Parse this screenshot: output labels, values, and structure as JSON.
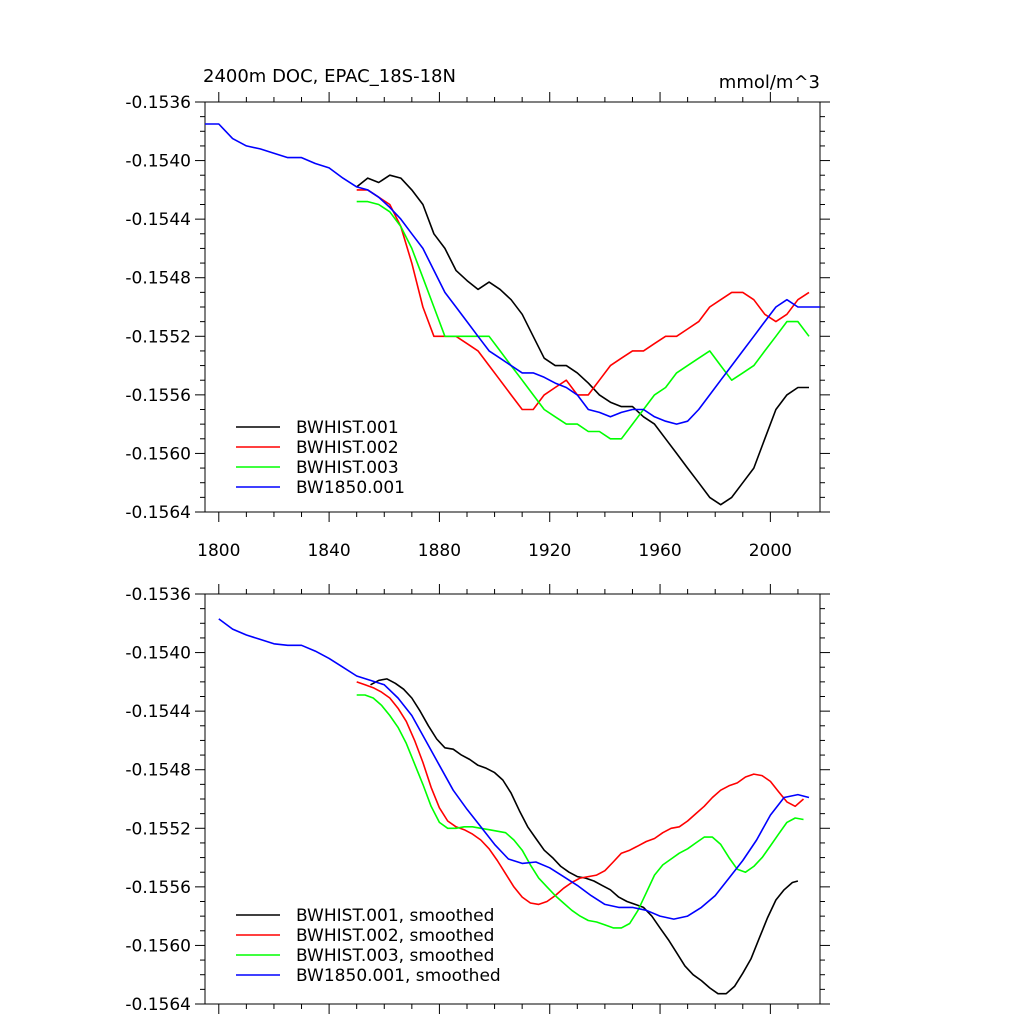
{
  "figure": {
    "title_left": "2400m DOC, EPAC_18S-18N",
    "title_right": "mmol/m^3"
  },
  "chart_data": [
    {
      "type": "line",
      "panel": "raw",
      "title": "2400m DOC, EPAC_18S-18N",
      "units": "mmol/m^3",
      "xlim": [
        1795,
        2018
      ],
      "ylim": [
        -0.1564,
        -0.1536
      ],
      "x_ticks": [
        1800,
        1840,
        1880,
        1920,
        1960,
        2000
      ],
      "x_tick_labels": [
        "1800",
        "1840",
        "1880",
        "1920",
        "1960",
        "2000"
      ],
      "y_ticks": [
        -0.1536,
        -0.154,
        -0.1544,
        -0.1548,
        -0.1552,
        -0.1556,
        -0.156,
        -0.1564
      ],
      "y_tick_labels": [
        "-0.1536",
        "-0.1540",
        "-0.1544",
        "-0.1548",
        "-0.1552",
        "-0.1556",
        "-0.1560",
        "-0.1564"
      ],
      "legend_position": "bottom-left",
      "series": [
        {
          "name": "BWHIST.001",
          "color": "#000000",
          "x": [
            1850,
            1854,
            1858,
            1862,
            1866,
            1870,
            1874,
            1878,
            1882,
            1886,
            1890,
            1894,
            1898,
            1902,
            1906,
            1910,
            1914,
            1918,
            1922,
            1926,
            1930,
            1934,
            1938,
            1942,
            1946,
            1950,
            1954,
            1958,
            1962,
            1966,
            1970,
            1974,
            1978,
            1982,
            1986,
            1990,
            1994,
            1998,
            2002,
            2006,
            2010,
            2014
          ],
          "y": [
            -0.15418,
            -0.15412,
            -0.15415,
            -0.1541,
            -0.15412,
            -0.1542,
            -0.1543,
            -0.1545,
            -0.1546,
            -0.15475,
            -0.15482,
            -0.15488,
            -0.15483,
            -0.15488,
            -0.15495,
            -0.15505,
            -0.1552,
            -0.15535,
            -0.1554,
            -0.1554,
            -0.15545,
            -0.15552,
            -0.1556,
            -0.15565,
            -0.15568,
            -0.15568,
            -0.15575,
            -0.1558,
            -0.1559,
            -0.156,
            -0.1561,
            -0.1562,
            -0.1563,
            -0.15635,
            -0.1563,
            -0.1562,
            -0.1561,
            -0.1559,
            -0.1557,
            -0.1556,
            -0.15555,
            -0.15555
          ]
        },
        {
          "name": "BWHIST.002",
          "color": "#ff0000",
          "x": [
            1850,
            1854,
            1858,
            1862,
            1866,
            1870,
            1874,
            1878,
            1882,
            1886,
            1890,
            1894,
            1898,
            1902,
            1906,
            1910,
            1914,
            1918,
            1922,
            1926,
            1930,
            1934,
            1938,
            1942,
            1946,
            1950,
            1954,
            1958,
            1962,
            1966,
            1970,
            1974,
            1978,
            1982,
            1986,
            1990,
            1994,
            1998,
            2002,
            2006,
            2010,
            2014
          ],
          "y": [
            -0.1542,
            -0.1542,
            -0.15425,
            -0.1543,
            -0.15445,
            -0.1547,
            -0.155,
            -0.1552,
            -0.1552,
            -0.1552,
            -0.15525,
            -0.1553,
            -0.1554,
            -0.1555,
            -0.1556,
            -0.1557,
            -0.1557,
            -0.1556,
            -0.15555,
            -0.1555,
            -0.1556,
            -0.1556,
            -0.1555,
            -0.1554,
            -0.15535,
            -0.1553,
            -0.1553,
            -0.15525,
            -0.1552,
            -0.1552,
            -0.15515,
            -0.1551,
            -0.155,
            -0.15495,
            -0.1549,
            -0.1549,
            -0.15495,
            -0.15505,
            -0.1551,
            -0.15505,
            -0.15495,
            -0.1549
          ]
        },
        {
          "name": "BWHIST.003",
          "color": "#00ff00",
          "x": [
            1850,
            1854,
            1858,
            1862,
            1866,
            1870,
            1874,
            1878,
            1882,
            1886,
            1890,
            1894,
            1898,
            1902,
            1906,
            1910,
            1914,
            1918,
            1922,
            1926,
            1930,
            1934,
            1938,
            1942,
            1946,
            1950,
            1954,
            1958,
            1962,
            1966,
            1970,
            1974,
            1978,
            1982,
            1986,
            1990,
            1994,
            1998,
            2002,
            2006,
            2010,
            2014
          ],
          "y": [
            -0.15428,
            -0.15428,
            -0.1543,
            -0.15435,
            -0.15445,
            -0.1546,
            -0.1548,
            -0.155,
            -0.1552,
            -0.1552,
            -0.1552,
            -0.1552,
            -0.1552,
            -0.1553,
            -0.1554,
            -0.1555,
            -0.1556,
            -0.1557,
            -0.15575,
            -0.1558,
            -0.1558,
            -0.15585,
            -0.15585,
            -0.1559,
            -0.1559,
            -0.1558,
            -0.1557,
            -0.1556,
            -0.15555,
            -0.15545,
            -0.1554,
            -0.15535,
            -0.1553,
            -0.1554,
            -0.1555,
            -0.15545,
            -0.1554,
            -0.1553,
            -0.1552,
            -0.1551,
            -0.1551,
            -0.1552
          ]
        },
        {
          "name": "BW1850.001",
          "color": "#0000ff",
          "x": [
            1795,
            1800,
            1805,
            1810,
            1815,
            1820,
            1825,
            1830,
            1835,
            1840,
            1845,
            1850,
            1854,
            1858,
            1862,
            1866,
            1870,
            1874,
            1878,
            1882,
            1886,
            1890,
            1894,
            1898,
            1902,
            1906,
            1910,
            1914,
            1918,
            1922,
            1926,
            1930,
            1934,
            1938,
            1942,
            1946,
            1950,
            1954,
            1958,
            1962,
            1966,
            1970,
            1974,
            1978,
            1982,
            1986,
            1990,
            1994,
            1998,
            2002,
            2006,
            2010,
            2014,
            2018
          ],
          "y": [
            -0.15375,
            -0.15375,
            -0.15385,
            -0.1539,
            -0.15392,
            -0.15395,
            -0.15398,
            -0.15398,
            -0.15402,
            -0.15405,
            -0.15412,
            -0.15418,
            -0.1542,
            -0.15425,
            -0.15432,
            -0.1544,
            -0.1545,
            -0.1546,
            -0.15475,
            -0.1549,
            -0.155,
            -0.1551,
            -0.1552,
            -0.1553,
            -0.15535,
            -0.1554,
            -0.15545,
            -0.15545,
            -0.15548,
            -0.15552,
            -0.15555,
            -0.1556,
            -0.1557,
            -0.15572,
            -0.15575,
            -0.15572,
            -0.1557,
            -0.1557,
            -0.15575,
            -0.15578,
            -0.1558,
            -0.15578,
            -0.1557,
            -0.1556,
            -0.1555,
            -0.1554,
            -0.1553,
            -0.1552,
            -0.1551,
            -0.155,
            -0.15495,
            -0.155,
            -0.155,
            -0.155
          ]
        }
      ]
    },
    {
      "type": "line",
      "panel": "smoothed",
      "xlim": [
        1795,
        2018
      ],
      "ylim": [
        -0.1564,
        -0.1536
      ],
      "x_ticks": [
        1800,
        1840,
        1880,
        1920,
        1960,
        2000
      ],
      "y_ticks": [
        -0.1536,
        -0.154,
        -0.1544,
        -0.1548,
        -0.1552,
        -0.1556,
        -0.156,
        -0.1564
      ],
      "y_tick_labels": [
        "-0.1536",
        "-0.1540",
        "-0.1544",
        "-0.1548",
        "-0.1552",
        "-0.1556",
        "-0.1560",
        "-0.1564"
      ],
      "legend_position": "bottom-left",
      "series": [
        {
          "name": "BWHIST.001, smoothed",
          "color": "#000000",
          "x": [
            1855,
            1858,
            1861,
            1864,
            1867,
            1870,
            1873,
            1876,
            1879,
            1882,
            1885,
            1888,
            1891,
            1894,
            1897,
            1900,
            1903,
            1906,
            1909,
            1912,
            1915,
            1918,
            1921,
            1924,
            1927,
            1930,
            1933,
            1936,
            1939,
            1942,
            1945,
            1948,
            1951,
            1954,
            1957,
            1960,
            1963,
            1966,
            1969,
            1972,
            1975,
            1978,
            1981,
            1984,
            1987,
            1990,
            1993,
            1996,
            1999,
            2002,
            2005,
            2008,
            2010
          ],
          "y": [
            -0.15422,
            -0.15419,
            -0.15418,
            -0.15421,
            -0.15425,
            -0.15431,
            -0.1544,
            -0.1545,
            -0.15459,
            -0.15465,
            -0.15466,
            -0.1547,
            -0.15473,
            -0.15477,
            -0.15479,
            -0.15482,
            -0.15487,
            -0.15496,
            -0.15508,
            -0.15519,
            -0.15527,
            -0.15535,
            -0.1554,
            -0.15546,
            -0.1555,
            -0.15553,
            -0.15554,
            -0.15556,
            -0.15559,
            -0.15562,
            -0.15567,
            -0.1557,
            -0.15572,
            -0.15574,
            -0.1558,
            -0.15588,
            -0.15596,
            -0.15605,
            -0.15614,
            -0.1562,
            -0.15624,
            -0.15629,
            -0.15633,
            -0.15633,
            -0.15628,
            -0.15619,
            -0.15609,
            -0.15595,
            -0.15581,
            -0.15569,
            -0.15562,
            -0.15557,
            -0.15556
          ]
        },
        {
          "name": "BWHIST.002, smoothed",
          "color": "#ff0000",
          "x": [
            1850,
            1853,
            1856,
            1859,
            1862,
            1865,
            1868,
            1871,
            1874,
            1877,
            1880,
            1883,
            1886,
            1889,
            1892,
            1895,
            1898,
            1901,
            1904,
            1907,
            1910,
            1913,
            1916,
            1919,
            1922,
            1925,
            1928,
            1931,
            1934,
            1937,
            1940,
            1943,
            1946,
            1949,
            1952,
            1955,
            1958,
            1961,
            1964,
            1967,
            1970,
            1973,
            1976,
            1979,
            1982,
            1985,
            1988,
            1991,
            1994,
            1997,
            2000,
            2003,
            2006,
            2009,
            2012
          ],
          "y": [
            -0.1542,
            -0.15422,
            -0.15424,
            -0.15427,
            -0.15431,
            -0.15438,
            -0.15447,
            -0.1546,
            -0.15475,
            -0.15492,
            -0.15506,
            -0.15515,
            -0.15519,
            -0.15521,
            -0.15524,
            -0.15528,
            -0.15534,
            -0.15542,
            -0.15551,
            -0.1556,
            -0.15567,
            -0.15571,
            -0.15572,
            -0.1557,
            -0.15566,
            -0.15561,
            -0.15557,
            -0.15554,
            -0.15553,
            -0.15552,
            -0.15549,
            -0.15543,
            -0.15537,
            -0.15535,
            -0.15532,
            -0.15529,
            -0.15527,
            -0.15523,
            -0.1552,
            -0.15519,
            -0.15515,
            -0.1551,
            -0.15505,
            -0.15499,
            -0.15494,
            -0.15491,
            -0.15489,
            -0.15485,
            -0.15483,
            -0.15484,
            -0.15488,
            -0.15495,
            -0.15502,
            -0.15505,
            -0.155
          ]
        },
        {
          "name": "BWHIST.003, smoothed",
          "color": "#00ff00",
          "x": [
            1850,
            1853,
            1856,
            1859,
            1862,
            1865,
            1868,
            1871,
            1874,
            1877,
            1880,
            1883,
            1886,
            1889,
            1892,
            1895,
            1898,
            1901,
            1904,
            1907,
            1910,
            1913,
            1916,
            1919,
            1922,
            1925,
            1928,
            1931,
            1934,
            1937,
            1940,
            1943,
            1946,
            1949,
            1952,
            1955,
            1958,
            1961,
            1964,
            1967,
            1970,
            1973,
            1976,
            1979,
            1982,
            1985,
            1988,
            1991,
            1994,
            1997,
            2000,
            2003,
            2006,
            2009,
            2012
          ],
          "y": [
            -0.15429,
            -0.15429,
            -0.15431,
            -0.15436,
            -0.15443,
            -0.15451,
            -0.15462,
            -0.15476,
            -0.1549,
            -0.15505,
            -0.15516,
            -0.1552,
            -0.1552,
            -0.15519,
            -0.15519,
            -0.1552,
            -0.15521,
            -0.15522,
            -0.15523,
            -0.15528,
            -0.15535,
            -0.15545,
            -0.15554,
            -0.1556,
            -0.15566,
            -0.15571,
            -0.15576,
            -0.1558,
            -0.15583,
            -0.15584,
            -0.15586,
            -0.15588,
            -0.15588,
            -0.15585,
            -0.15576,
            -0.15564,
            -0.15552,
            -0.15545,
            -0.15541,
            -0.15537,
            -0.15534,
            -0.1553,
            -0.15526,
            -0.15526,
            -0.15531,
            -0.1554,
            -0.15548,
            -0.1555,
            -0.15546,
            -0.1554,
            -0.15532,
            -0.15524,
            -0.15516,
            -0.15513,
            -0.15514
          ]
        },
        {
          "name": "BW1850.001, smoothed",
          "color": "#0000ff",
          "x": [
            1800,
            1805,
            1810,
            1815,
            1820,
            1825,
            1830,
            1835,
            1840,
            1845,
            1850,
            1855,
            1860,
            1865,
            1870,
            1875,
            1880,
            1885,
            1890,
            1895,
            1900,
            1905,
            1910,
            1915,
            1920,
            1925,
            1930,
            1935,
            1940,
            1945,
            1950,
            1955,
            1960,
            1965,
            1970,
            1975,
            1980,
            1985,
            1990,
            1995,
            2000,
            2005,
            2010,
            2014
          ],
          "y": [
            -0.15377,
            -0.15384,
            -0.15388,
            -0.15391,
            -0.15394,
            -0.15395,
            -0.15395,
            -0.15399,
            -0.15404,
            -0.1541,
            -0.15416,
            -0.15419,
            -0.15422,
            -0.15431,
            -0.15443,
            -0.1546,
            -0.15477,
            -0.15494,
            -0.15507,
            -0.15519,
            -0.15531,
            -0.15541,
            -0.15544,
            -0.15543,
            -0.15547,
            -0.15553,
            -0.15559,
            -0.15566,
            -0.15572,
            -0.15574,
            -0.15574,
            -0.15576,
            -0.1558,
            -0.15582,
            -0.1558,
            -0.15574,
            -0.15566,
            -0.15554,
            -0.15542,
            -0.15528,
            -0.15511,
            -0.15499,
            -0.15497,
            -0.15499
          ]
        }
      ]
    }
  ]
}
